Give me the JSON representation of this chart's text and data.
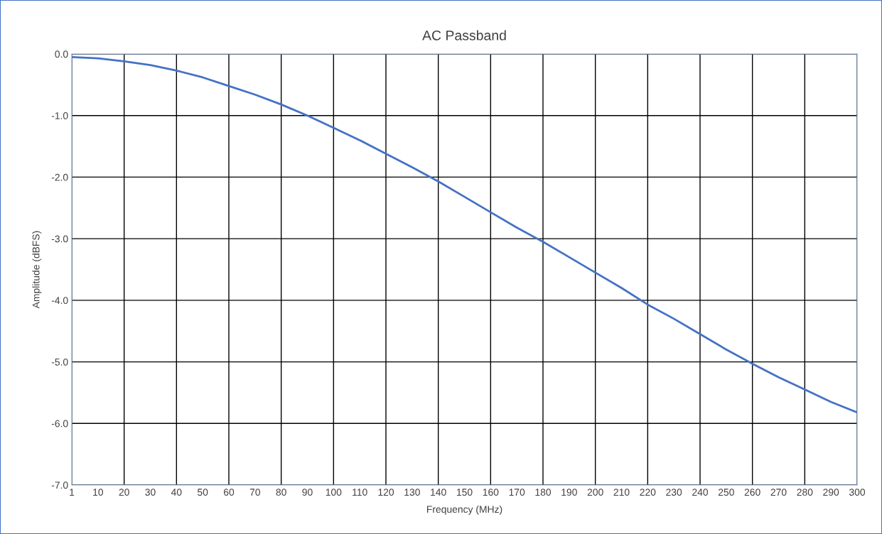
{
  "chart_data": {
    "type": "line",
    "title": "AC Passband",
    "xlabel": "Frequency (MHz)",
    "ylabel": "Amplitude (dBFS)",
    "categories": [
      "1",
      "10",
      "20",
      "30",
      "40",
      "50",
      "60",
      "70",
      "80",
      "90",
      "100",
      "110",
      "120",
      "130",
      "140",
      "150",
      "160",
      "170",
      "180",
      "190",
      "200",
      "210",
      "220",
      "230",
      "240",
      "250",
      "260",
      "270",
      "280",
      "290",
      "300"
    ],
    "series": [
      {
        "color": "#4472c4",
        "values": [
          -0.05,
          -0.07,
          -0.12,
          -0.18,
          -0.27,
          -0.38,
          -0.52,
          -0.66,
          -0.82,
          -1.0,
          -1.2,
          -1.4,
          -1.62,
          -1.84,
          -2.07,
          -2.32,
          -2.57,
          -2.82,
          -3.05,
          -3.3,
          -3.55,
          -3.8,
          -4.07,
          -4.3,
          -4.55,
          -4.8,
          -5.03,
          -5.25,
          -5.45,
          -5.65,
          -5.82
        ]
      }
    ],
    "ylim": [
      -7,
      0
    ],
    "yticks": [
      {
        "value": -7,
        "label": "-7.0"
      },
      {
        "value": -6,
        "label": "-6.0"
      },
      {
        "value": -5,
        "label": "-5.0"
      },
      {
        "value": -4,
        "label": "-4.0"
      },
      {
        "value": -3,
        "label": "-3.0"
      },
      {
        "value": -2,
        "label": "-2.0"
      },
      {
        "value": -1,
        "label": "-1.0"
      },
      {
        "value": 0,
        "label": "0.0"
      }
    ],
    "grid": true,
    "marker": "none",
    "line_style": "solid"
  }
}
